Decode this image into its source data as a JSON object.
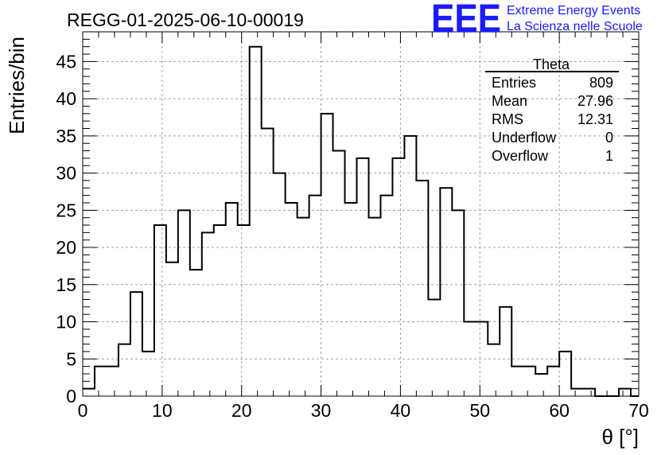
{
  "header": {
    "run_title": "REGG-01-2025-06-10-00019"
  },
  "logo": {
    "mark": "EEE",
    "line1": "Extreme Energy Events",
    "line2": "La Scienza nelle Scuole",
    "color": "#1a1aff"
  },
  "stats_box": {
    "title": "Theta",
    "rows": [
      {
        "label": "Entries",
        "value": "809"
      },
      {
        "label": "Mean",
        "value": "27.96"
      },
      {
        "label": "RMS",
        "value": "12.31"
      },
      {
        "label": "Underflow",
        "value": "0"
      },
      {
        "label": "Overflow",
        "value": "1"
      }
    ]
  },
  "chart_data": {
    "type": "bar",
    "style": "step-histogram",
    "title": "REGG-01-2025-06-10-00019",
    "xlabel": "θ [°]",
    "ylabel": "Entries/bin",
    "xlim": [
      0,
      70
    ],
    "ylim": [
      0,
      49
    ],
    "grid": true,
    "bin_width": 1.5,
    "bin_edges_start": 0,
    "values": [
      1,
      4,
      4,
      7,
      14,
      6,
      23,
      18,
      25,
      17,
      22,
      23,
      26,
      23,
      47,
      36,
      30,
      26,
      24,
      27,
      38,
      33,
      26,
      32,
      24,
      27,
      32,
      35,
      29,
      13,
      28,
      25,
      10,
      10,
      7,
      12,
      4,
      4,
      3,
      4,
      6,
      1,
      1,
      0,
      0,
      1,
      0
    ],
    "x_ticks": [
      "0",
      "10",
      "20",
      "30",
      "40",
      "50",
      "60",
      "70"
    ],
    "y_ticks": [
      "0",
      "5",
      "10",
      "15",
      "20",
      "25",
      "30",
      "35",
      "40",
      "45"
    ],
    "line_color": "#000000"
  }
}
